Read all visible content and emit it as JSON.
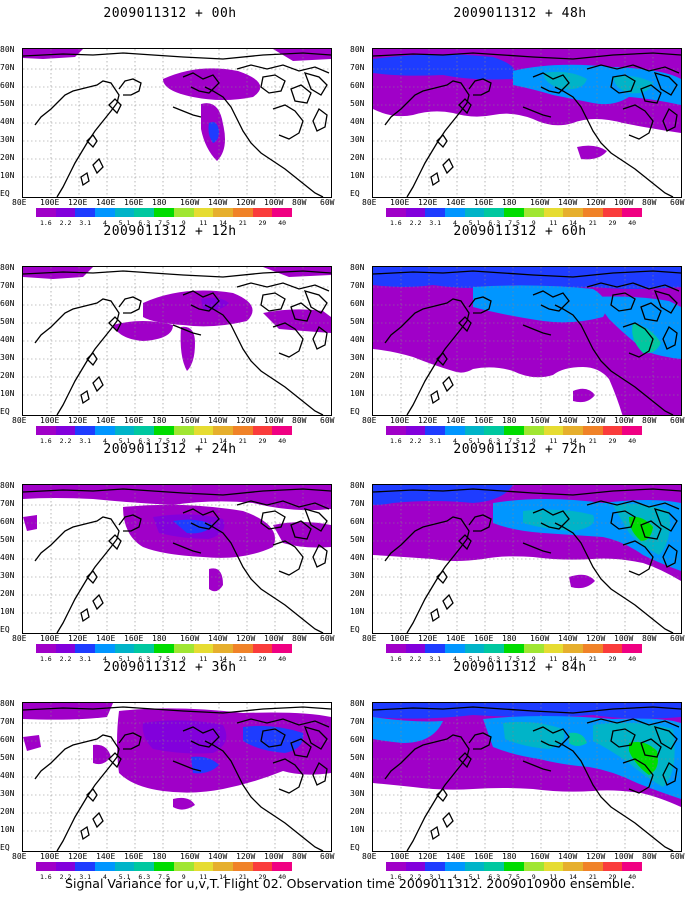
{
  "panel_titles": [
    "2009011312 + 00h",
    "2009011312 + 48h",
    "2009011312 + 12h",
    "2009011312 + 60h",
    "2009011312 + 24h",
    "2009011312 + 72h",
    "2009011312 + 36h",
    "2009011312 + 84h"
  ],
  "lat_labels": [
    "80N",
    "70N",
    "60N",
    "50N",
    "40N",
    "30N",
    "20N",
    "10N",
    "EQ"
  ],
  "lon_labels": [
    "80E",
    "100E",
    "120E",
    "140E",
    "160E",
    "180",
    "160W",
    "140W",
    "120W",
    "100W",
    "80W",
    "60W"
  ],
  "colorbar": {
    "tick_labels": [
      "1.6",
      "2.2",
      "3.1",
      "4",
      "5.1",
      "6.3",
      "7.5",
      "9",
      "11",
      "14",
      "21",
      "29",
      "40"
    ],
    "colors": [
      "#a000c8",
      "#8200dc",
      "#1e3cff",
      "#0096ff",
      "#00b4c8",
      "#00c8a0",
      "#00dc00",
      "#a0e632",
      "#e6dc32",
      "#e6af2d",
      "#f08228",
      "#fa3c3c",
      "#f00082"
    ]
  },
  "caption": "Signal Variance for u,v,T. Flight 02. Observation time 2009011312. 2009010900 ensemble."
}
